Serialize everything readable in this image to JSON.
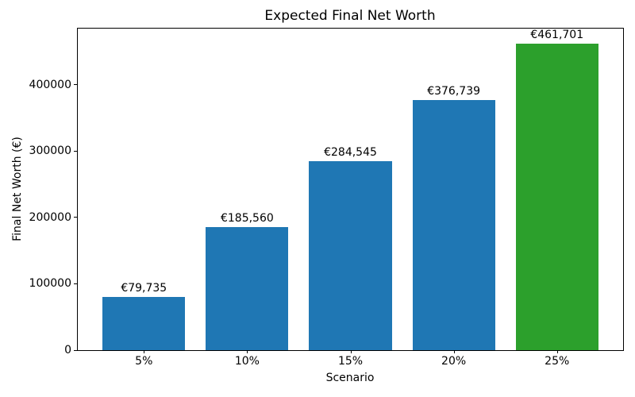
{
  "chart_data": {
    "type": "bar",
    "title": "Expected Final Net Worth",
    "xlabel": "Scenario",
    "ylabel": "Final Net Worth (€)",
    "categories": [
      "5%",
      "10%",
      "15%",
      "20%",
      "25%"
    ],
    "values": [
      79735,
      185560,
      284545,
      376739,
      461701
    ],
    "value_labels": [
      "€79,735",
      "€185,560",
      "€284,545",
      "€376,739",
      "€461,701"
    ],
    "bar_colors": [
      "#1f77b4",
      "#1f77b4",
      "#1f77b4",
      "#1f77b4",
      "#2ca02c"
    ],
    "highlight_color": "#2ca02c",
    "default_bar_color": "#1f77b4",
    "ylim": [
      0,
      484786
    ],
    "xlim": [
      -0.64,
      4.64
    ],
    "bar_width": 0.8,
    "yticks": [
      0,
      100000,
      200000,
      300000,
      400000
    ],
    "ytick_labels": [
      "0",
      "100000",
      "200000",
      "300000",
      "400000"
    ],
    "grid": false,
    "legend_position": "none"
  }
}
